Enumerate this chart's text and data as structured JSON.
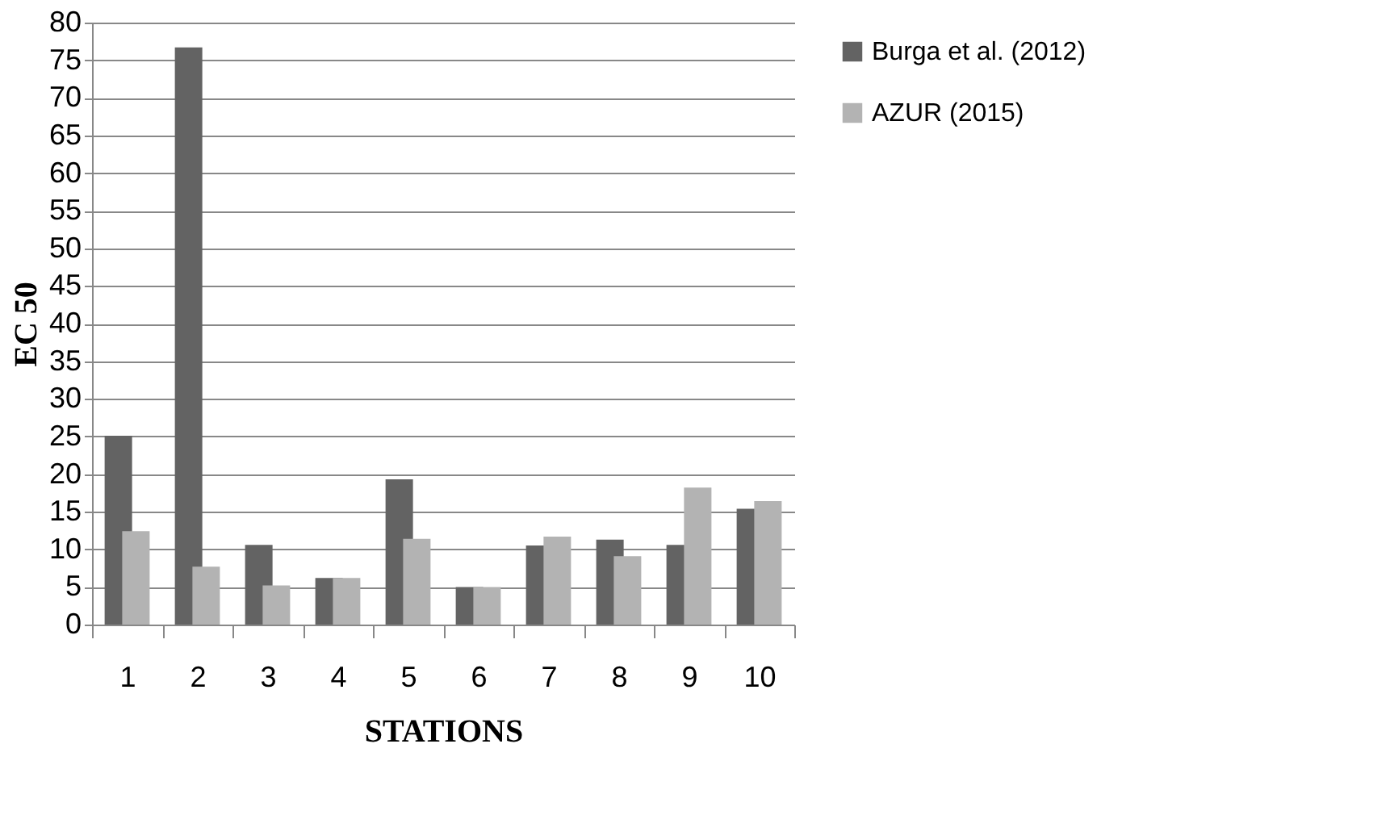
{
  "chart_data": {
    "type": "bar",
    "xlabel": "STATIONS",
    "ylabel": "EC 50",
    "categories": [
      "1",
      "2",
      "3",
      "4",
      "5",
      "6",
      "7",
      "8",
      "9",
      "10"
    ],
    "series": [
      {
        "name": "Burga et  al. (2012)",
        "color": "#636363",
        "values": [
          25.1,
          76.7,
          10.6,
          6.2,
          19.3,
          5.0,
          10.5,
          11.3,
          10.6,
          15.4
        ]
      },
      {
        "name": "AZUR (2015)",
        "color": "#b3b3b3",
        "values": [
          12.4,
          7.7,
          5.2,
          6.2,
          11.4,
          5.0,
          11.7,
          9.1,
          18.2,
          16.4
        ]
      }
    ],
    "ylim": [
      0,
      80
    ],
    "yticks": [
      0,
      5,
      10,
      15,
      20,
      25,
      30,
      35,
      40,
      45,
      50,
      55,
      60,
      65,
      70,
      75,
      80
    ],
    "grid": "y",
    "legend": "right"
  }
}
